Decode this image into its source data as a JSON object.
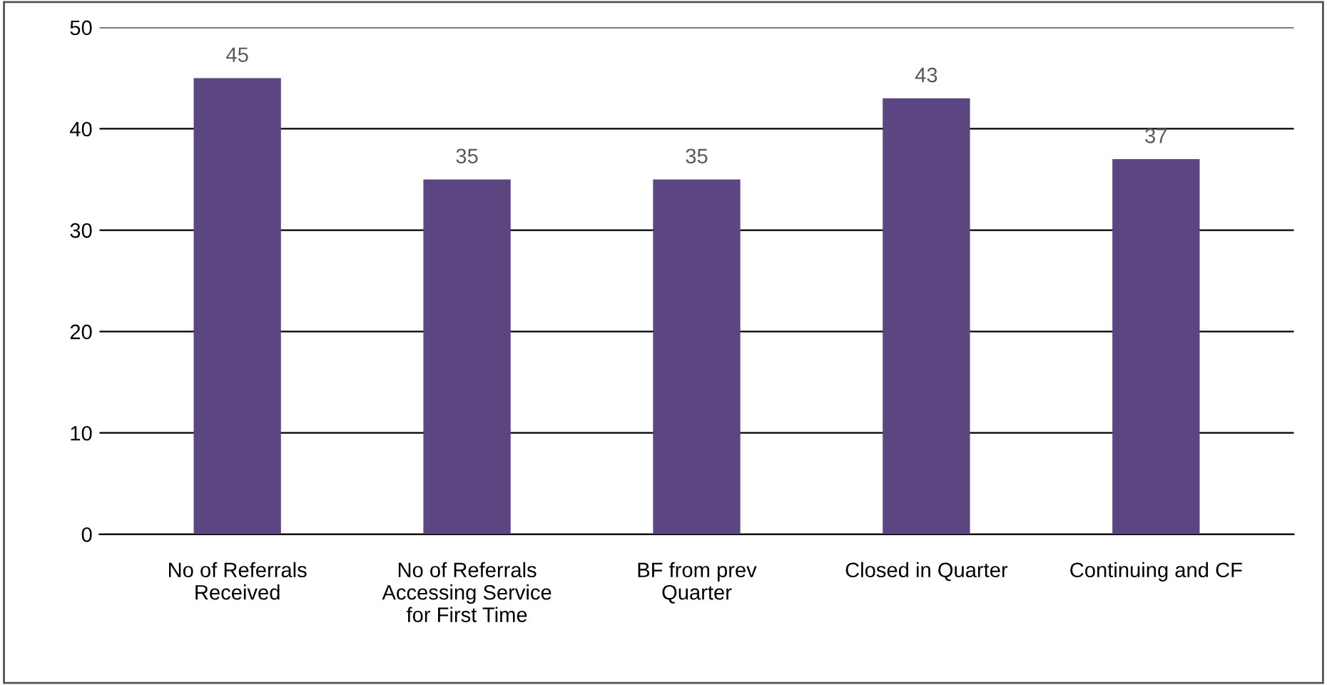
{
  "chart_data": {
    "type": "bar",
    "categories": [
      "No of Referrals\nReceived",
      "No of Referrals\nAccessing Service\nfor First Time",
      "BF from prev\nQuarter",
      "Closed in Quarter",
      "Continuing and CF"
    ],
    "values": [
      45,
      35,
      35,
      43,
      37
    ],
    "color": "#5c4682",
    "ylim": [
      0,
      50
    ],
    "yticks": [
      0,
      10,
      20,
      30,
      40,
      50
    ],
    "grid": "y",
    "data_labels": true
  }
}
